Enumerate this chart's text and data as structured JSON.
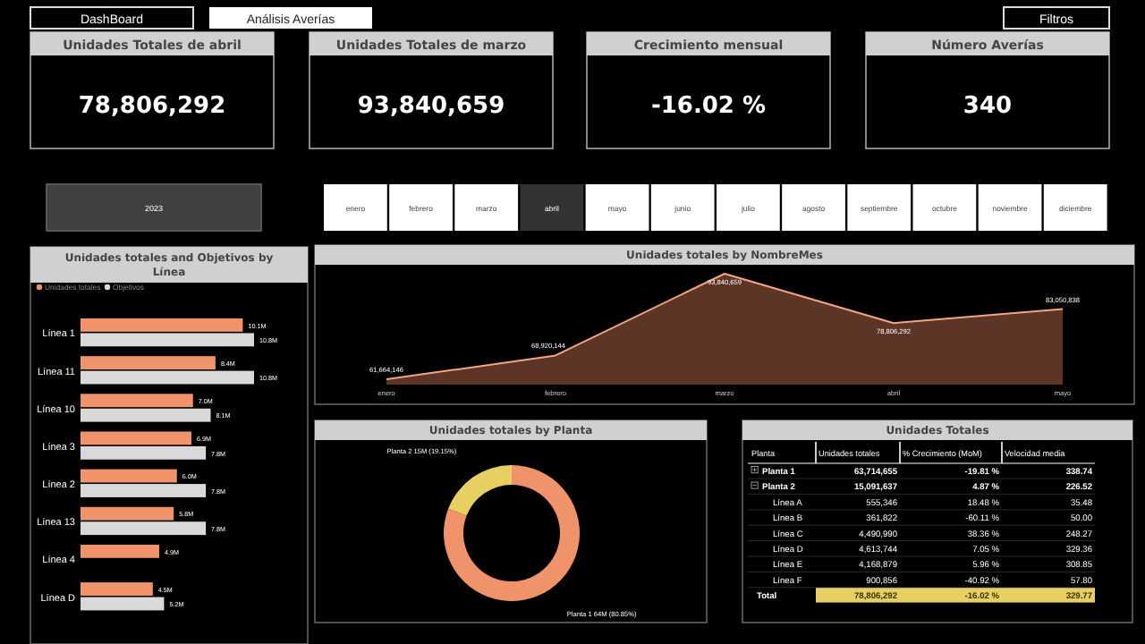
{
  "chart_data": [
    {
      "type": "other",
      "categories": [
        "Unidades Totales de abril",
        "Unidades Totales de marzo",
        "Crecimiento mensual",
        "Número Averías"
      ],
      "value_labels": [
        "78,806,292",
        "93,840,659",
        "-16.02 %",
        "340"
      ],
      "annotations": [
        "DashBoard",
        "Análisis Averías",
        "Filtros",
        "2023",
        "enero",
        "febrero",
        "marzo",
        "abril",
        "mayo",
        "junio",
        "julio",
        "agosto",
        "septiembre",
        "octubre",
        "noviembre",
        "diciembre"
      ]
    },
    {
      "type": "bar",
      "orientation": "horizontal",
      "title": "Unidades totales and Objetivos by Línea",
      "legend": "top left",
      "categories": [
        "Línea 1",
        "Línea 11",
        "Línea 10",
        "Línea 3",
        "Línea 2",
        "Línea 13",
        "Línea 4",
        "Línea D"
      ],
      "series": [
        {
          "name": "Unidades totales",
          "color": "#f0936a",
          "values": [
            10.1,
            8.4,
            7.0,
            6.9,
            6.0,
            5.8,
            4.9,
            4.5
          ],
          "value_labels": [
            "10.1M",
            "8.4M",
            "7.0M",
            "6.9M",
            "6.0M",
            "5.8M",
            "4.9M",
            "4.5M"
          ]
        },
        {
          "name": "Objetivos",
          "color": "#d9d9d9",
          "values": [
            10.8,
            10.8,
            8.1,
            7.8,
            7.8,
            7.8,
            null,
            5.2
          ],
          "value_labels": [
            "10.8M",
            "10.8M",
            "8.1M",
            "7.8M",
            "7.8M",
            "7.8M",
            null,
            "5.2M"
          ]
        }
      ]
    },
    {
      "type": "area",
      "title": "Unidades totales by NombreMes",
      "categories": [
        "enero",
        "febrero",
        "marzo",
        "abril",
        "mayo"
      ],
      "series": [
        {
          "color": "#f4a582",
          "values": [
            61664146,
            68920144,
            93840659,
            78806292,
            83050838
          ],
          "value_labels": [
            "61,664,146",
            "68,920,144",
            "93,840,659",
            "78,806,292",
            "83,050,838"
          ]
        }
      ]
    },
    {
      "type": "donut",
      "title": "Unidades totales by Planta",
      "categories": [
        "Planta 1",
        "Planta 2"
      ],
      "values": [
        80.85,
        19.15
      ],
      "colors": [
        "#f0936a",
        "#e8cf62"
      ],
      "value_labels": [
        "64M (80.85%)",
        "15M (19.15%)"
      ]
    },
    {
      "type": "other",
      "title": "Unidades Totales",
      "ylabel": "Planta",
      "categories": [
        "Unidades totales",
        "% Crecimiento (MoM)",
        "Velocidad media"
      ],
      "y_categories": [
        "Planta 1",
        "Planta 2",
        "Línea A",
        "Línea B",
        "Línea C",
        "Línea D",
        "Línea E",
        "Línea F",
        "Total"
      ],
      "cell_labels": [
        [
          "63,714,655",
          "-19.81 %",
          "338.74"
        ],
        [
          "15,091,637",
          "4.87 %",
          "226.52"
        ],
        [
          "555,346",
          "18.48 %",
          "35.48"
        ],
        [
          "361,822",
          "-60.11 %",
          "50.00"
        ],
        [
          "4,490,990",
          "38.36 %",
          "248.27"
        ],
        [
          "4,613,744",
          "7.05 %",
          "329.36"
        ],
        [
          "4,168,879",
          "5.96 %",
          "308.85"
        ],
        [
          "900,856",
          "-40.92 %",
          "57.80"
        ],
        [
          "78,806,292",
          "-16.02 %",
          "329.77"
        ]
      ]
    }
  ]
}
